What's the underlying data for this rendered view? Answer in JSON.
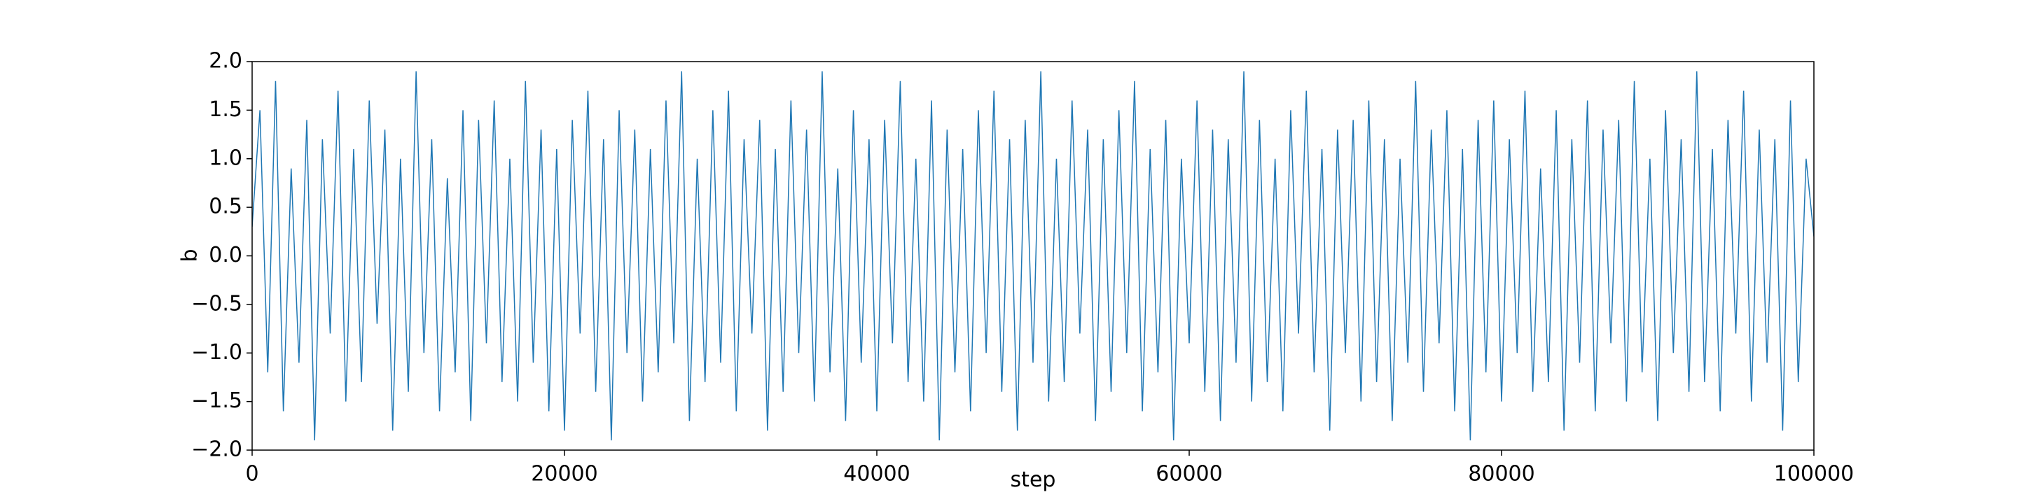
{
  "chart_data": {
    "type": "line",
    "xlabel": "step",
    "ylabel": "b",
    "xlim": [
      0,
      100000
    ],
    "ylim": [
      -2,
      2
    ],
    "xticks": [
      0,
      20000,
      40000,
      60000,
      80000,
      100000
    ],
    "yticks": [
      {
        "value": -2,
        "label": "−2.0"
      },
      {
        "value": -1.5,
        "label": "−1.5"
      },
      {
        "value": -1,
        "label": "−1.0"
      },
      {
        "value": -0.5,
        "label": "−0.5"
      },
      {
        "value": 0,
        "label": "0.0"
      },
      {
        "value": 0.5,
        "label": "0.5"
      },
      {
        "value": 1,
        "label": "1.0"
      },
      {
        "value": 1.5,
        "label": "1.5"
      },
      {
        "value": 2,
        "label": "2.0"
      }
    ],
    "grid": false,
    "series": [
      {
        "name": "b",
        "color": "#1f77b4",
        "x": [
          0,
          500,
          1000,
          1500,
          2000,
          2500,
          3000,
          3500,
          4000,
          4500,
          5000,
          5500,
          6000,
          6500,
          7000,
          7500,
          8000,
          8500,
          9000,
          9500,
          10000,
          10500,
          11000,
          11500,
          12000,
          12500,
          13000,
          13500,
          14000,
          14500,
          15000,
          15500,
          16000,
          16500,
          17000,
          17500,
          18000,
          18500,
          19000,
          19500,
          20000,
          20500,
          21000,
          21500,
          22000,
          22500,
          23000,
          23500,
          24000,
          24500,
          25000,
          25500,
          26000,
          26500,
          27000,
          27500,
          28000,
          28500,
          29000,
          29500,
          30000,
          30500,
          31000,
          31500,
          32000,
          32500,
          33000,
          33500,
          34000,
          34500,
          35000,
          35500,
          36000,
          36500,
          37000,
          37500,
          38000,
          38500,
          39000,
          39500,
          40000,
          40500,
          41000,
          41500,
          42000,
          42500,
          43000,
          43500,
          44000,
          44500,
          45000,
          45500,
          46000,
          46500,
          47000,
          47500,
          48000,
          48500,
          49000,
          49500,
          50000,
          50500,
          51000,
          51500,
          52000,
          52500,
          53000,
          53500,
          54000,
          54500,
          55000,
          55500,
          56000,
          56500,
          57000,
          57500,
          58000,
          58500,
          59000,
          59500,
          60000,
          60500,
          61000,
          61500,
          62000,
          62500,
          63000,
          63500,
          64000,
          64500,
          65000,
          65500,
          66000,
          66500,
          67000,
          67500,
          68000,
          68500,
          69000,
          69500,
          70000,
          70500,
          71000,
          71500,
          72000,
          72500,
          73000,
          73500,
          74000,
          74500,
          75000,
          75500,
          76000,
          76500,
          77000,
          77500,
          78000,
          78500,
          79000,
          79500,
          80000,
          80500,
          81000,
          81500,
          82000,
          82500,
          83000,
          83500,
          84000,
          84500,
          85000,
          85500,
          86000,
          86500,
          87000,
          87500,
          88000,
          88500,
          89000,
          89500,
          90000,
          90500,
          91000,
          91500,
          92000,
          92500,
          93000,
          93500,
          94000,
          94500,
          95000,
          95500,
          96000,
          96500,
          97000,
          97500,
          98000,
          98500,
          99000,
          99500,
          100000
        ],
        "values": [
          0.3,
          1.5,
          -1.2,
          1.8,
          -1.6,
          0.9,
          -1.1,
          1.4,
          -1.9,
          1.2,
          -0.8,
          1.7,
          -1.5,
          1.1,
          -1.3,
          1.6,
          -0.7,
          1.3,
          -1.8,
          1.0,
          -1.4,
          1.9,
          -1.0,
          1.2,
          -1.6,
          0.8,
          -1.2,
          1.5,
          -1.7,
          1.4,
          -0.9,
          1.6,
          -1.3,
          1.0,
          -1.5,
          1.8,
          -1.1,
          1.3,
          -1.6,
          1.1,
          -1.8,
          1.4,
          -0.8,
          1.7,
          -1.4,
          1.2,
          -1.9,
          1.5,
          -1.0,
          1.3,
          -1.5,
          1.1,
          -1.2,
          1.6,
          -0.9,
          1.9,
          -1.7,
          1.0,
          -1.3,
          1.5,
          -1.1,
          1.7,
          -1.6,
          1.2,
          -0.8,
          1.4,
          -1.8,
          1.1,
          -1.4,
          1.6,
          -1.0,
          1.3,
          -1.5,
          1.9,
          -1.2,
          0.9,
          -1.7,
          1.5,
          -1.1,
          1.2,
          -1.6,
          1.4,
          -0.9,
          1.8,
          -1.3,
          1.0,
          -1.5,
          1.6,
          -1.9,
          1.3,
          -1.2,
          1.1,
          -1.6,
          1.5,
          -1.0,
          1.7,
          -1.4,
          1.2,
          -1.8,
          1.4,
          -1.1,
          1.9,
          -1.5,
          1.0,
          -1.3,
          1.6,
          -0.8,
          1.3,
          -1.7,
          1.2,
          -1.4,
          1.5,
          -1.0,
          1.8,
          -1.6,
          1.1,
          -1.2,
          1.4,
          -1.9,
          1.0,
          -0.9,
          1.6,
          -1.4,
          1.3,
          -1.7,
          1.2,
          -1.1,
          1.9,
          -1.5,
          1.4,
          -1.3,
          1.0,
          -1.6,
          1.5,
          -0.8,
          1.7,
          -1.2,
          1.1,
          -1.8,
          1.3,
          -1.0,
          1.4,
          -1.5,
          1.6,
          -1.3,
          1.2,
          -1.7,
          1.0,
          -1.1,
          1.8,
          -1.4,
          1.3,
          -0.9,
          1.5,
          -1.6,
          1.1,
          -1.9,
          1.4,
          -1.2,
          1.6,
          -1.5,
          1.2,
          -1.0,
          1.7,
          -1.4,
          0.9,
          -1.3,
          1.5,
          -1.8,
          1.2,
          -1.1,
          1.6,
          -1.6,
          1.3,
          -0.9,
          1.4,
          -1.5,
          1.8,
          -1.2,
          1.0,
          -1.7,
          1.5,
          -1.0,
          1.2,
          -1.4,
          1.9,
          -1.3,
          1.1,
          -1.6,
          1.4,
          -0.8,
          1.7,
          -1.5,
          1.3,
          -1.1,
          1.2,
          -1.8,
          1.6,
          -1.3,
          1.0,
          0.2
        ]
      }
    ]
  }
}
